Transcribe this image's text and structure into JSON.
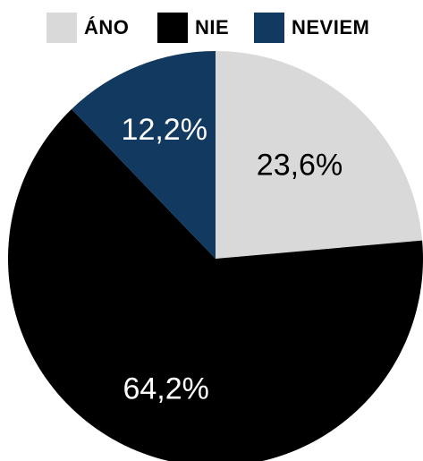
{
  "chart_data": {
    "type": "pie",
    "categories": [
      "ÁNO",
      "NIE",
      "NEVIEM"
    ],
    "values": [
      23.6,
      64.2,
      12.2
    ],
    "value_labels": [
      "23,6%",
      "64,2%",
      "12,2%"
    ],
    "colors": [
      "#d9d9d9",
      "#000000",
      "#12395f"
    ],
    "label_colors": [
      "#000000",
      "#ffffff",
      "#ffffff"
    ],
    "start": "12 o'clock",
    "direction": "clockwise",
    "legend": "top"
  }
}
